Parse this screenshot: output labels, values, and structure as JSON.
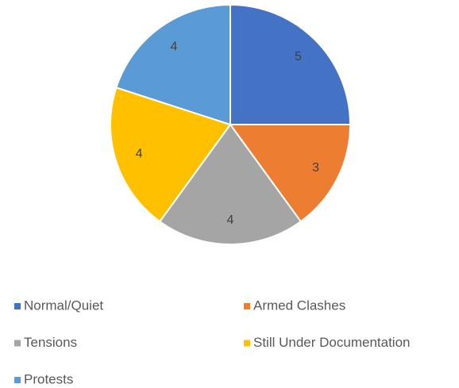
{
  "chart_data": {
    "type": "pie",
    "categories": [
      "Normal/Quiet",
      "Armed Clashes",
      "Tensions",
      "Still Under Documentation",
      "Protests"
    ],
    "values": [
      5,
      3,
      4,
      4,
      4
    ],
    "colors": [
      "#4472c4",
      "#ed7d31",
      "#a5a5a5",
      "#ffc000",
      "#5b9bd5"
    ],
    "legend": "bottom"
  }
}
